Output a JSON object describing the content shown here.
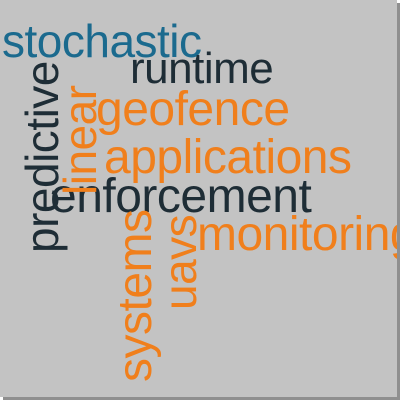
{
  "colors": {
    "background": "#c3c3c3",
    "shadow": "#8f8f8f",
    "blue": "#1b6a8e",
    "dark": "#1e2d36",
    "orange": "#f07f1c"
  },
  "words": {
    "stochastic": {
      "text": "stochastic",
      "color": "#1b6a8e"
    },
    "runtime": {
      "text": "runtime",
      "color": "#1e2d36"
    },
    "geofence": {
      "text": "geofence",
      "color": "#f07f1c"
    },
    "applications": {
      "text": "applications",
      "color": "#f07f1c"
    },
    "enforcement": {
      "text": "enforcement",
      "color": "#1e2d36"
    },
    "monitoring": {
      "text": "monitoring",
      "color": "#f07f1c"
    },
    "predictive": {
      "text": "predictive",
      "color": "#1e2d36"
    },
    "linear": {
      "text": "linear",
      "color": "#f07f1c"
    },
    "systems": {
      "text": "systems",
      "color": "#f07f1c"
    },
    "uavs": {
      "text": "uavs",
      "color": "#f07f1c"
    }
  }
}
